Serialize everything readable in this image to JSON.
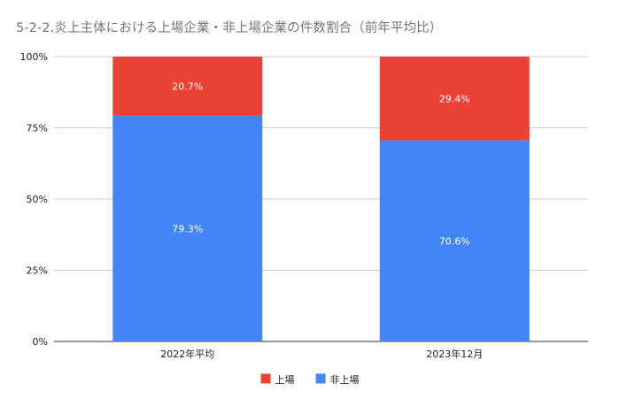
{
  "title": "5-2-2.炎上主体における上場企業・非上場企業の件数割合（前年平均比）",
  "chart_data": {
    "type": "bar",
    "stacked": true,
    "normalized_percent": true,
    "categories": [
      "2022年平均",
      "2023年12月"
    ],
    "series": [
      {
        "name": "非上場",
        "color": "#4285f4",
        "values": [
          79.3,
          70.6
        ]
      },
      {
        "name": "上場",
        "color": "#ea4335",
        "values": [
          20.7,
          29.4
        ]
      }
    ],
    "data_labels": [
      [
        "79.3%",
        "70.6%"
      ],
      [
        "20.7%",
        "29.4%"
      ]
    ],
    "y_ticks": [
      "0%",
      "25%",
      "50%",
      "75%",
      "100%"
    ],
    "ylim": [
      0,
      100
    ],
    "grid": true,
    "legend": {
      "position": "bottom",
      "entries": [
        {
          "name": "上場",
          "color": "#ea4335"
        },
        {
          "name": "非上場",
          "color": "#4285f4"
        }
      ]
    },
    "xlabel": "",
    "ylabel": ""
  }
}
